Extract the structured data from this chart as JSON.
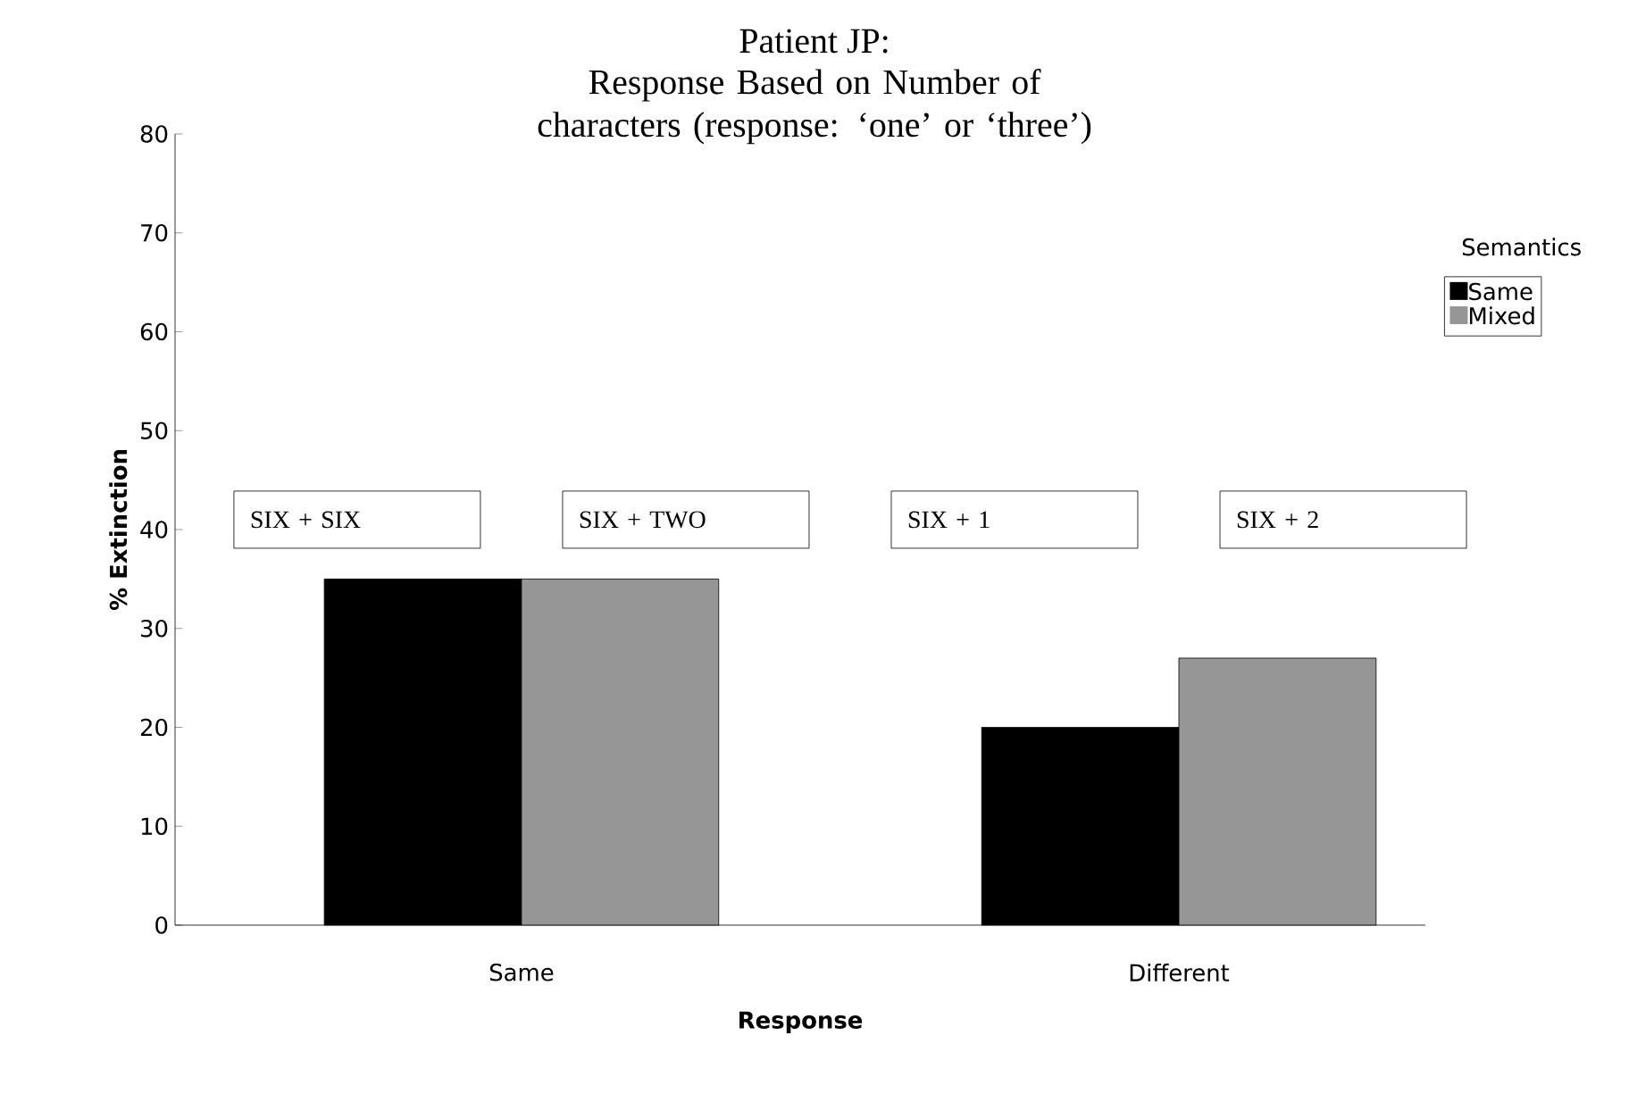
{
  "chart_data": {
    "type": "bar",
    "title": "Patient JP:",
    "subtitle": "Response Based on Number of characters (response: ‘one’ or ‘three’)",
    "xlabel": "Response",
    "ylabel": "% Extinction",
    "legend_title": "Semantics",
    "categories": [
      "Same",
      "Different"
    ],
    "series": [
      {
        "name": "Same",
        "color": "#000000",
        "values": [
          35,
          20
        ]
      },
      {
        "name": "Mixed",
        "color": "#969696",
        "values": [
          35,
          27
        ]
      }
    ],
    "ylim": [
      0,
      80
    ],
    "yticks": [
      0,
      10,
      20,
      30,
      40,
      50,
      60,
      70,
      80
    ],
    "grid": false,
    "legend": "right",
    "annotations": [
      "SIX + SIX",
      "SIX + TWO",
      "SIX +  1",
      "SIX +  2"
    ]
  }
}
